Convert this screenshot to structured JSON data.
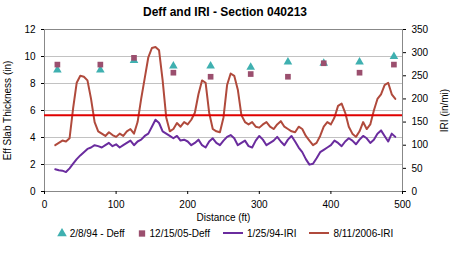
{
  "chart_data": {
    "type": "line",
    "title": "Deff and IRI - Section 040213",
    "x_label": "Distance (ft)",
    "y_label": "Eff Slab Thickness (in)",
    "y2_label": "IRI (in/mi)",
    "xlim": [
      0,
      500
    ],
    "xticks": [
      0,
      100,
      200,
      300,
      400,
      500
    ],
    "ylim": [
      0,
      12
    ],
    "yticks": [
      0,
      2,
      4,
      6,
      8,
      10,
      12
    ],
    "y2lim": [
      0,
      350
    ],
    "y2ticks": [
      0,
      50,
      100,
      150,
      200,
      250,
      300,
      350
    ],
    "grid": true,
    "legend": "bottom",
    "reference_line": {
      "value": 5.65,
      "color": "#e00000"
    },
    "series": [
      {
        "name": "2/8/94 - Deff",
        "type": "scatter",
        "marker": "triangle",
        "color": "#3fb0b0",
        "x": [
          18,
          78,
          125,
          180,
          232,
          288,
          340,
          390,
          440,
          488
        ],
        "values": [
          9.0,
          9.0,
          9.7,
          9.3,
          9.3,
          9.2,
          9.6,
          9.5,
          9.6,
          10.0
        ]
      },
      {
        "name": "12/15/05-Deff",
        "type": "scatter",
        "marker": "square",
        "color": "#9b4f6e",
        "x": [
          18,
          78,
          125,
          180,
          232,
          288,
          340,
          390,
          440,
          488
        ],
        "values": [
          9.4,
          9.4,
          9.9,
          8.8,
          8.5,
          8.7,
          8.5,
          9.5,
          8.8,
          9.4
        ]
      },
      {
        "name": "1/25/94-IRI",
        "type": "line",
        "axis": "y2",
        "color": "#6a2c9e",
        "x": [
          15,
          20,
          25,
          30,
          35,
          40,
          45,
          50,
          55,
          60,
          65,
          70,
          75,
          80,
          85,
          90,
          95,
          100,
          105,
          110,
          115,
          120,
          125,
          130,
          135,
          140,
          145,
          150,
          155,
          160,
          165,
          170,
          175,
          180,
          185,
          190,
          195,
          200,
          205,
          210,
          215,
          220,
          225,
          230,
          235,
          240,
          245,
          250,
          255,
          260,
          265,
          270,
          275,
          280,
          285,
          290,
          295,
          300,
          305,
          310,
          315,
          320,
          325,
          330,
          335,
          340,
          345,
          350,
          355,
          360,
          365,
          370,
          375,
          380,
          385,
          390,
          395,
          400,
          405,
          410,
          415,
          420,
          425,
          430,
          435,
          440,
          445,
          450,
          455,
          460,
          465,
          470,
          475,
          480,
          485,
          490
        ],
        "values": [
          48,
          46,
          45,
          42,
          50,
          60,
          70,
          78,
          85,
          92,
          95,
          100,
          98,
          95,
          100,
          105,
          98,
          102,
          95,
          100,
          105,
          110,
          100,
          108,
          112,
          120,
          125,
          140,
          155,
          148,
          130,
          125,
          120,
          115,
          120,
          110,
          112,
          108,
          100,
          105,
          112,
          100,
          95,
          108,
          115,
          105,
          100,
          110,
          118,
          122,
          115,
          100,
          105,
          110,
          98,
          95,
          110,
          120,
          112,
          100,
          105,
          110,
          118,
          108,
          100,
          112,
          120,
          108,
          95,
          85,
          70,
          58,
          60,
          72,
          85,
          90,
          95,
          100,
          110,
          105,
          98,
          108,
          115,
          110,
          102,
          112,
          120,
          115,
          105,
          112,
          125,
          132,
          120,
          108,
          125,
          118
        ]
      },
      {
        "name": "8/11/2006-IRI",
        "type": "line",
        "axis": "y2",
        "color": "#b04a3c",
        "x": [
          15,
          20,
          25,
          30,
          35,
          40,
          45,
          50,
          55,
          60,
          65,
          70,
          75,
          80,
          85,
          90,
          95,
          100,
          105,
          110,
          115,
          120,
          125,
          130,
          135,
          140,
          145,
          150,
          155,
          160,
          165,
          170,
          175,
          180,
          185,
          190,
          195,
          200,
          205,
          210,
          215,
          220,
          225,
          230,
          235,
          240,
          245,
          250,
          255,
          260,
          265,
          270,
          275,
          280,
          285,
          290,
          295,
          300,
          305,
          310,
          315,
          320,
          325,
          330,
          335,
          340,
          345,
          350,
          355,
          360,
          365,
          370,
          375,
          380,
          385,
          390,
          395,
          400,
          405,
          410,
          415,
          420,
          425,
          430,
          435,
          440,
          445,
          450,
          455,
          460,
          465,
          470,
          475,
          480,
          485,
          490
        ],
        "values": [
          100,
          105,
          110,
          108,
          115,
          180,
          235,
          250,
          248,
          240,
          200,
          150,
          130,
          125,
          120,
          128,
          122,
          118,
          125,
          120,
          130,
          135,
          125,
          150,
          200,
          245,
          290,
          310,
          312,
          305,
          240,
          160,
          130,
          135,
          148,
          140,
          150,
          145,
          155,
          170,
          210,
          240,
          235,
          170,
          135,
          130,
          128,
          160,
          230,
          255,
          250,
          220,
          165,
          150,
          145,
          150,
          140,
          138,
          145,
          150,
          140,
          135,
          145,
          152,
          140,
          135,
          130,
          128,
          140,
          135,
          120,
          110,
          100,
          105,
          120,
          140,
          150,
          145,
          160,
          185,
          190,
          170,
          140,
          125,
          118,
          130,
          150,
          135,
          145,
          175,
          200,
          210,
          230,
          235,
          210,
          200
        ]
      }
    ]
  }
}
